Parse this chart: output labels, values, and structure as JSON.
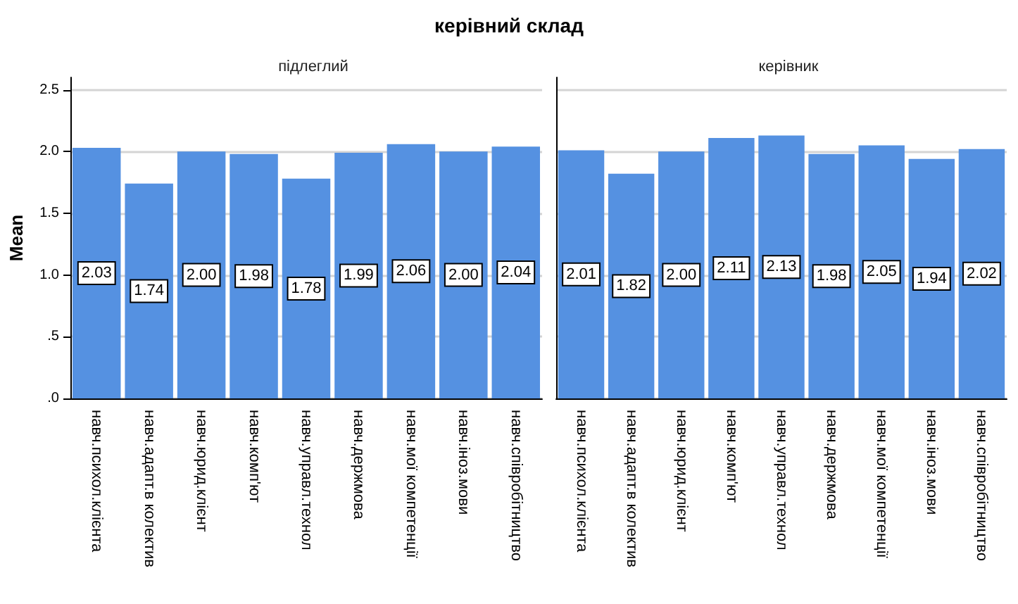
{
  "chart_data": [
    {
      "type": "bar",
      "title": "керівний склад",
      "subtitle": "підлеглий",
      "ylabel": "Mean",
      "categories": [
        "навч.психол.клієнта",
        "навч.адапт.в колектив",
        "навч.юрид.клієнт",
        "навч.комп'ют",
        "навч.управл.технол",
        "навч.держмова",
        "навч.мої компетенції",
        "навч.іноз.мови",
        "навч.співробітництво"
      ],
      "values": [
        2.03,
        1.74,
        2.0,
        1.98,
        1.78,
        1.99,
        2.06,
        2.0,
        2.04
      ],
      "value_labels": [
        "2.03",
        "1.74",
        "2.00",
        "1.98",
        "1.78",
        "1.99",
        "2.06",
        "2.00",
        "2.04"
      ],
      "color": "#5591e1",
      "ylim": [
        0,
        2.6
      ],
      "yticks": [
        {
          "value": 0,
          "label": ".0"
        },
        {
          "value": 0.5,
          "label": ".5"
        },
        {
          "value": 1,
          "label": "1.0"
        },
        {
          "value": 1.5,
          "label": "1.5"
        },
        {
          "value": 2,
          "label": "2.0"
        },
        {
          "value": 2.5,
          "label": "2.5"
        }
      ],
      "grid": "y"
    },
    {
      "type": "bar",
      "subtitle": "керівник",
      "categories": [
        "навч.психол.клієнта",
        "навч.адапт.в колектив",
        "навч.юрид.клієнт",
        "навч.комп'ют",
        "навч.управл.технол",
        "навч.держмова",
        "навч.мої компетенції",
        "навч.іноз.мови",
        "навч.співробітництво"
      ],
      "values": [
        2.01,
        1.82,
        2.0,
        2.11,
        2.13,
        1.98,
        2.05,
        1.94,
        2.02
      ],
      "value_labels": [
        "2.01",
        "1.82",
        "2.00",
        "2.11",
        "2.13",
        "1.98",
        "2.05",
        "1.94",
        "2.02"
      ],
      "color": "#5591e1",
      "ylim": [
        0,
        2.6
      ],
      "yticks": [
        0,
        0.5,
        1,
        1.5,
        2,
        2.5
      ],
      "grid": "y",
      "tick_labels": "x"
    }
  ]
}
